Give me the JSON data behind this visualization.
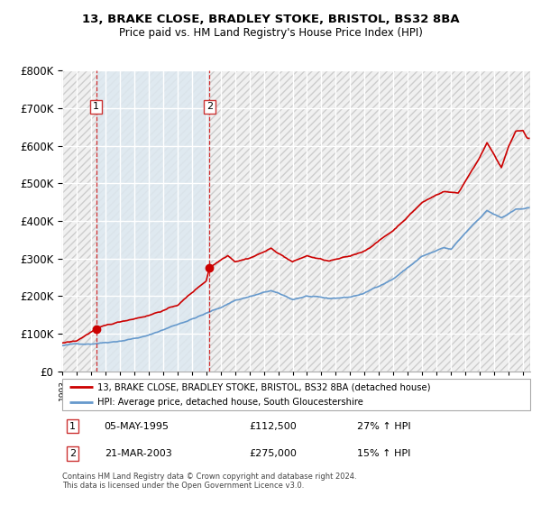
{
  "title": "13, BRAKE CLOSE, BRADLEY STOKE, BRISTOL, BS32 8BA",
  "subtitle": "Price paid vs. HM Land Registry's House Price Index (HPI)",
  "red_line_label": "13, BRAKE CLOSE, BRADLEY STOKE, BRISTOL, BS32 8BA (detached house)",
  "blue_line_label": "HPI: Average price, detached house, South Gloucestershire",
  "footer": "Contains HM Land Registry data © Crown copyright and database right 2024.\nThis data is licensed under the Open Government Licence v3.0.",
  "transactions": [
    {
      "num": 1,
      "date": "05-MAY-1995",
      "price": "£112,500",
      "hpi": "27% ↑ HPI",
      "year": 1995.35
    },
    {
      "num": 2,
      "date": "21-MAR-2003",
      "price": "£275,000",
      "hpi": "15% ↑ HPI",
      "year": 2003.22
    }
  ],
  "transaction_values": [
    112500,
    275000
  ],
  "transaction_years": [
    1995.35,
    2003.22
  ],
  "ylim": [
    0,
    800000
  ],
  "xlim_start": 1993.0,
  "xlim_end": 2025.5,
  "red_color": "#cc0000",
  "blue_color": "#6699cc",
  "grid_color": "#c8d8e8",
  "hatch_fill_color": "#dde8f0"
}
